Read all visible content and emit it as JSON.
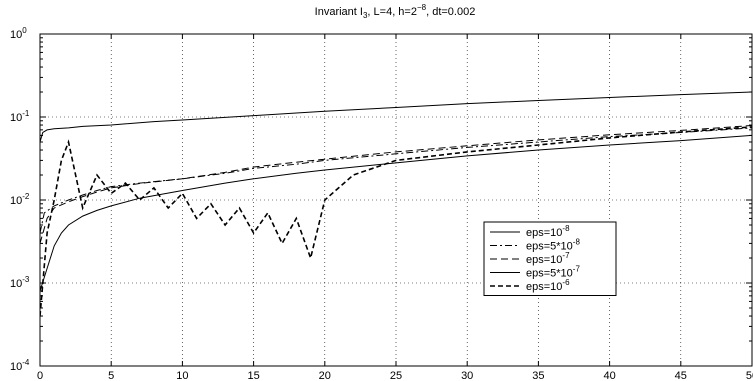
{
  "chart_data": {
    "type": "line",
    "title_parts": {
      "lead": "Invariant I",
      "lead_sub": "3",
      "mid": ",  L=4,  h=2",
      "mid_sup": "−8",
      "tail": ", dt=0.002"
    },
    "xlabel": "",
    "ylabel": "",
    "xlim": [
      0,
      50
    ],
    "ylim": [
      0.0001,
      1
    ],
    "yscale": "log",
    "grid": true,
    "x_ticks": [
      "0",
      "5",
      "10",
      "15",
      "20",
      "25",
      "30",
      "35",
      "40",
      "45",
      "50"
    ],
    "y_ticks": [
      {
        "base": "10",
        "exp": "0",
        "value": 1
      },
      {
        "base": "10",
        "exp": "-1",
        "value": 0.1
      },
      {
        "base": "10",
        "exp": "-2",
        "value": 0.01
      },
      {
        "base": "10",
        "exp": "-3",
        "value": 0.001
      },
      {
        "base": "10",
        "exp": "-4",
        "value": 0.0001
      }
    ],
    "legend_position": "right",
    "series": [
      {
        "name_base": "eps=10",
        "name_exp": "-8",
        "style": "solid",
        "x": [
          0,
          0.2,
          0.5,
          1,
          2,
          3,
          5,
          8,
          10,
          15,
          20,
          25,
          30,
          35,
          40,
          45,
          50
        ],
        "y": [
          0.05,
          0.065,
          0.07,
          0.072,
          0.074,
          0.077,
          0.08,
          0.088,
          0.092,
          0.104,
          0.117,
          0.13,
          0.145,
          0.158,
          0.172,
          0.186,
          0.2
        ]
      },
      {
        "name_base": "eps=5*10",
        "name_exp": "-8",
        "style": "dashdot",
        "x": [
          0,
          0.3,
          1,
          2,
          3,
          4,
          5,
          7,
          10,
          13,
          15,
          18,
          20,
          25,
          30,
          35,
          40,
          45,
          50
        ],
        "y": [
          0.004,
          0.007,
          0.0085,
          0.01,
          0.0115,
          0.013,
          0.0145,
          0.016,
          0.018,
          0.021,
          0.024,
          0.027,
          0.03,
          0.036,
          0.043,
          0.05,
          0.058,
          0.065,
          0.074
        ]
      },
      {
        "name_base": "eps=10",
        "name_exp": "-7",
        "style": "dashed",
        "x": [
          0,
          0.5,
          1,
          2,
          3,
          4,
          5,
          7,
          10,
          13,
          15,
          18,
          20,
          25,
          30,
          35,
          40,
          45,
          50
        ],
        "y": [
          0.003,
          0.006,
          0.008,
          0.0095,
          0.011,
          0.0125,
          0.014,
          0.0158,
          0.018,
          0.0215,
          0.025,
          0.0285,
          0.031,
          0.038,
          0.045,
          0.053,
          0.061,
          0.069,
          0.079
        ]
      },
      {
        "name_base": "eps=5*10",
        "name_exp": "-7",
        "style": "solid",
        "x": [
          0,
          0.5,
          1,
          1.5,
          2,
          3,
          4,
          5,
          7,
          10,
          13,
          15,
          18,
          20,
          25,
          30,
          35,
          40,
          45,
          50
        ],
        "y": [
          0.0008,
          0.0015,
          0.0028,
          0.004,
          0.005,
          0.0064,
          0.0075,
          0.0085,
          0.0105,
          0.013,
          0.016,
          0.018,
          0.021,
          0.023,
          0.028,
          0.034,
          0.04,
          0.046,
          0.052,
          0.06
        ]
      },
      {
        "name_base": "eps=10",
        "name_exp": "-6",
        "style": "dashed-heavy",
        "x": [
          0,
          0.5,
          1,
          1.5,
          2,
          2.5,
          3,
          4,
          5,
          6,
          7,
          8,
          9,
          10,
          11,
          12,
          13,
          14,
          15,
          16,
          17,
          18,
          19,
          20,
          22,
          25,
          30,
          35,
          40,
          45,
          50
        ],
        "y": [
          0.0004,
          0.004,
          0.01,
          0.03,
          0.05,
          0.02,
          0.008,
          0.02,
          0.012,
          0.016,
          0.01,
          0.014,
          0.008,
          0.012,
          0.006,
          0.009,
          0.005,
          0.008,
          0.004,
          0.007,
          0.003,
          0.006,
          0.002,
          0.01,
          0.02,
          0.03,
          0.038,
          0.046,
          0.056,
          0.066,
          0.076
        ]
      }
    ]
  }
}
